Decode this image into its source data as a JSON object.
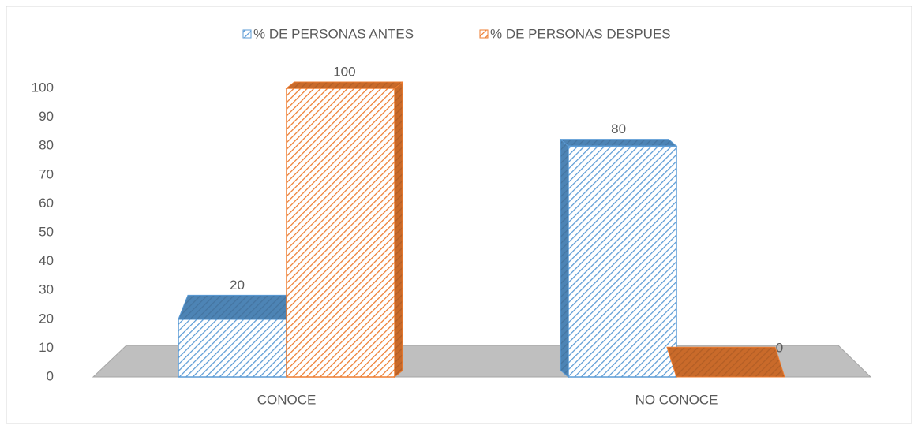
{
  "chart_data": {
    "type": "bar3d",
    "categories": [
      "CONOCE",
      "NO CONOCE"
    ],
    "series": [
      {
        "name": "% DE PERSONAS ANTES",
        "color": "#5b9bd5",
        "values": [
          20,
          80
        ]
      },
      {
        "name": "% DE PERSONAS DESPUES",
        "color": "#ed7d31",
        "values": [
          100,
          0
        ]
      }
    ],
    "ylim": [
      0,
      100
    ],
    "yticks": [
      0,
      10,
      20,
      30,
      40,
      50,
      60,
      70,
      80,
      90,
      100
    ],
    "legend": "top"
  }
}
